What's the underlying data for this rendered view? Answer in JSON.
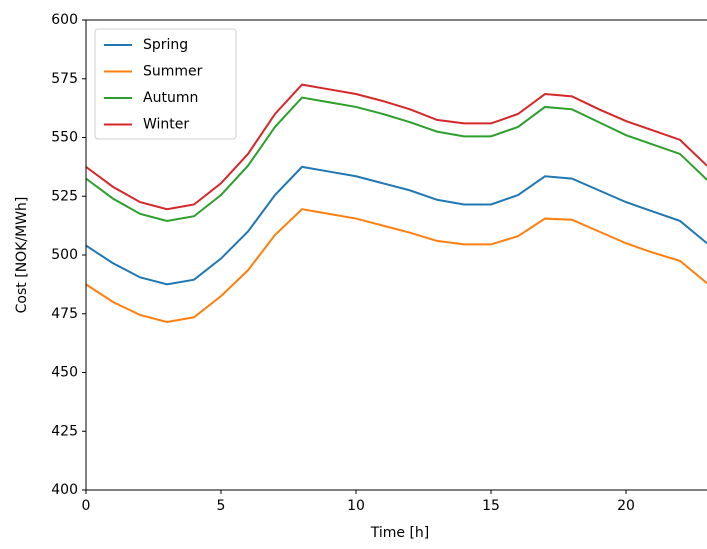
{
  "chart_data": {
    "type": "line",
    "xlabel": "Time [h]",
    "ylabel": "Cost [NOK/MWh]",
    "x": [
      0,
      1,
      2,
      3,
      4,
      5,
      6,
      7,
      8,
      9,
      10,
      11,
      12,
      13,
      14,
      15,
      16,
      17,
      18,
      19,
      20,
      21,
      22,
      23
    ],
    "series": [
      {
        "name": "Spring",
        "color": "#1f77b4",
        "values": [
          504,
          496.5,
          490.5,
          487.5,
          489.5,
          498.5,
          510,
          525.5,
          537.5,
          535.5,
          533.5,
          530.5,
          527.5,
          523.5,
          521.5,
          521.5,
          525.5,
          533.5,
          532.5,
          527.5,
          522.5,
          518.5,
          514.5,
          505
        ]
      },
      {
        "name": "Summer",
        "color": "#ff7f0e",
        "values": [
          487.5,
          480,
          474.5,
          471.5,
          473.5,
          482.5,
          493.5,
          508.5,
          519.5,
          517.5,
          515.5,
          512.5,
          509.5,
          506,
          504.5,
          504.5,
          508,
          515.5,
          515,
          510,
          505,
          501,
          497.5,
          488
        ]
      },
      {
        "name": "Autumn",
        "color": "#2ca02c",
        "values": [
          532.5,
          524,
          517.5,
          514.5,
          516.5,
          525.5,
          538,
          554.5,
          567,
          565,
          563,
          560,
          556.5,
          552.5,
          550.5,
          550.5,
          554.5,
          563,
          562,
          556.5,
          551,
          547,
          543,
          532
        ]
      },
      {
        "name": "Winter",
        "color": "#d62728",
        "values": [
          537.5,
          529,
          522.5,
          519.5,
          521.5,
          530.5,
          543,
          560,
          572.5,
          570.5,
          568.5,
          565.5,
          562,
          557.5,
          556,
          556,
          560,
          568.5,
          567.5,
          562,
          557,
          553,
          549,
          538
        ]
      }
    ],
    "xlim": [
      0,
      23
    ],
    "xticks": [
      0,
      5,
      10,
      15,
      20
    ],
    "ylim": [
      400,
      600
    ],
    "yticks": [
      400,
      425,
      450,
      475,
      500,
      525,
      550,
      575,
      600
    ],
    "legend": "upper left"
  }
}
